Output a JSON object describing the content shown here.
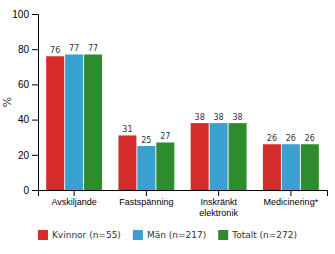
{
  "chart_data": {
    "type": "bar",
    "categories": [
      "Avskiljande",
      "Fastspänning",
      "Inskränkt\nelektronik",
      "Medicinering*"
    ],
    "series": [
      {
        "name": "Kvinnor (n=55)",
        "color": "#d42b2b",
        "values": [
          76,
          31,
          38,
          26
        ]
      },
      {
        "name": "Män (n=217)",
        "color": "#3aa0d0",
        "values": [
          77,
          25,
          38,
          26
        ]
      },
      {
        "name": "Totalt (n=272)",
        "color": "#2e8b2e",
        "values": [
          77,
          27,
          38,
          26
        ]
      }
    ],
    "y_label": "%",
    "ylim": [
      0,
      100
    ],
    "yticks": [
      0,
      20,
      40,
      60,
      80,
      100
    ],
    "grid": false,
    "legend": "bottom",
    "data_labels": true
  }
}
